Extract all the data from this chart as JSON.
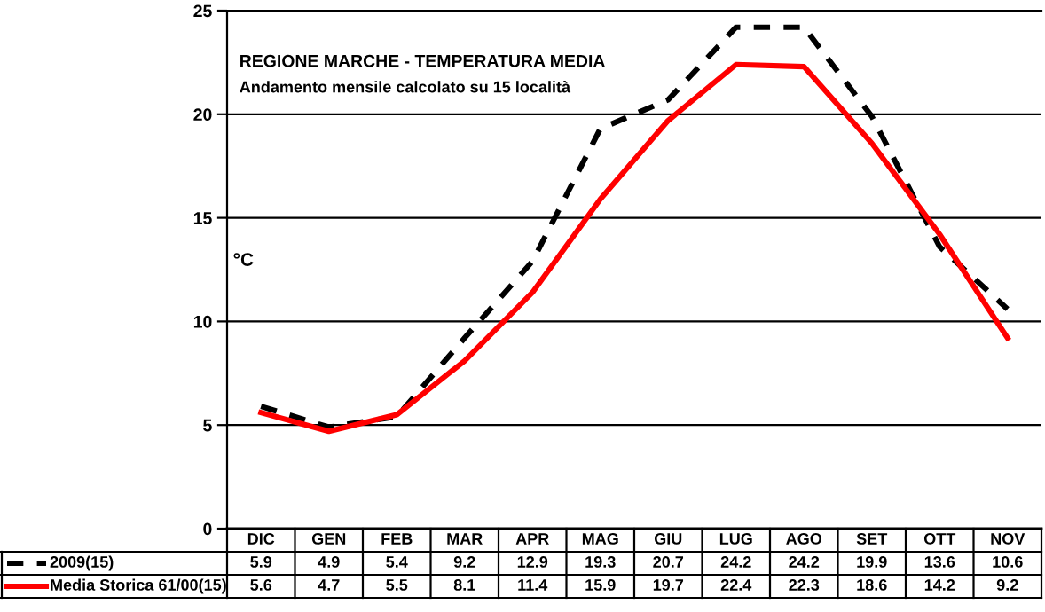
{
  "chart_data": {
    "type": "line",
    "title": "REGIONE MARCHE - TEMPERATURA MEDIA",
    "subtitle": "Andamento mensile calcolato su 15 località",
    "ylabel": "°C",
    "categories": [
      "DIC",
      "GEN",
      "FEB",
      "MAR",
      "APR",
      "MAG",
      "GIU",
      "LUG",
      "AGO",
      "SET",
      "OTT",
      "NOV"
    ],
    "series": [
      {
        "name": "2009(15)",
        "color": "#000000",
        "line_style": "dashed",
        "values": [
          5.9,
          4.9,
          5.4,
          9.2,
          12.9,
          19.3,
          20.7,
          24.2,
          24.2,
          19.9,
          13.6,
          10.6
        ]
      },
      {
        "name": "Media Storica 61/00(15)",
        "color": "#ff0000",
        "line_style": "solid",
        "values": [
          5.6,
          4.7,
          5.5,
          8.1,
          11.4,
          15.9,
          19.7,
          22.4,
          22.3,
          18.6,
          14.2,
          9.2
        ]
      }
    ],
    "ylim": [
      0,
      25
    ],
    "yticks": [
      0,
      5,
      10,
      15,
      20,
      25
    ],
    "grid": "y",
    "legend": "bottom",
    "data_labels": true,
    "marker": "none"
  }
}
